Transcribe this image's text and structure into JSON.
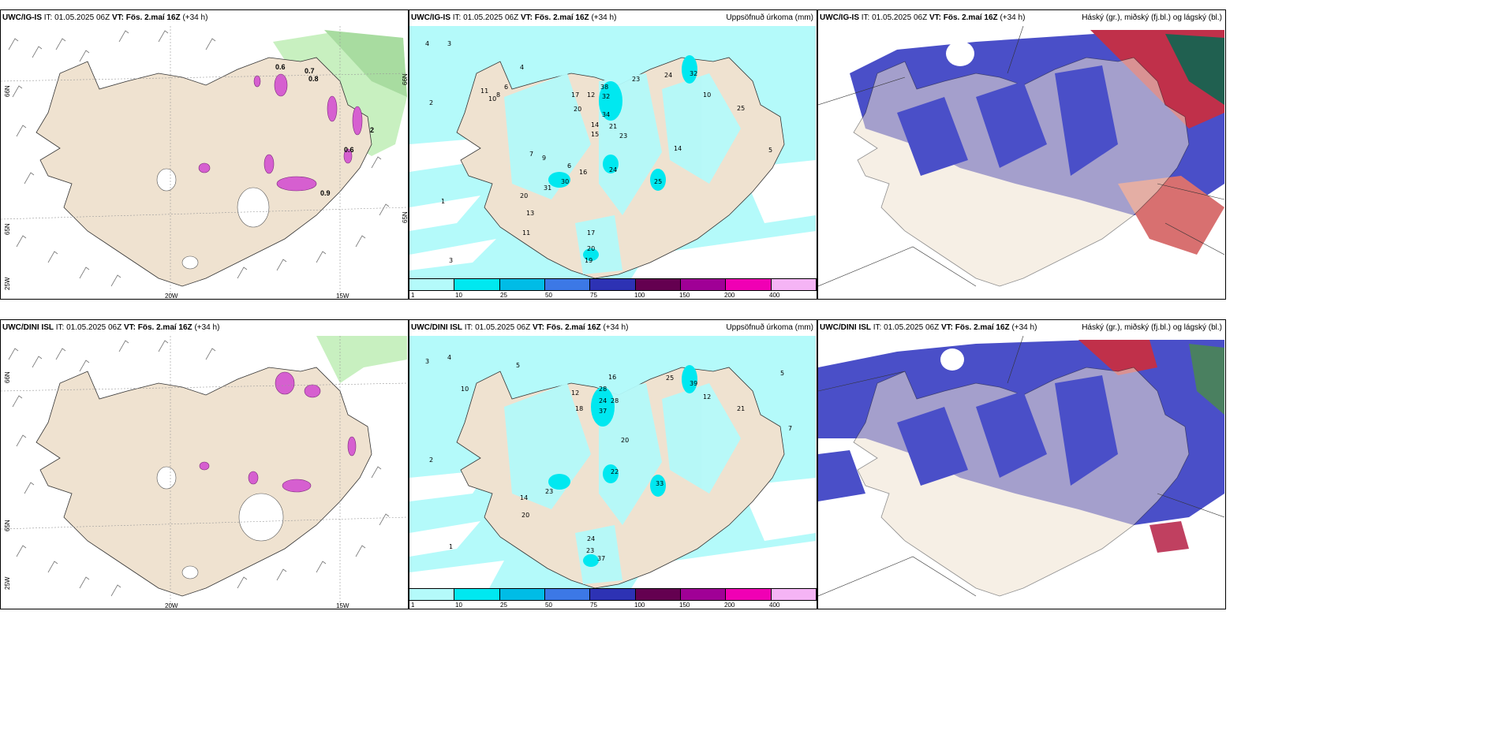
{
  "panels": {
    "p1": {
      "model": "UWC/IG-IS",
      "it_label": "IT:",
      "it": "01.05.2025 06Z",
      "vt_label": "VT:",
      "vt": "Fös. 2.maí 16Z",
      "lead": "(+34 h)",
      "right": ""
    },
    "p2": {
      "model": "UWC/IG-IS",
      "it_label": "IT:",
      "it": "01.05.2025 06Z",
      "vt_label": "VT:",
      "vt": "Fös. 2.maí 16Z",
      "lead": "(+34 h)",
      "right": "Uppsöfnuð úrkoma (mm)"
    },
    "p3": {
      "model": "UWC/IG-IS",
      "it_label": "IT:",
      "it": "01.05.2025 06Z",
      "vt_label": "VT:",
      "vt": "Fös. 2.maí 16Z",
      "lead": "(+34 h)",
      "right": "Háský (gr.), miðský (fj.bl.) og lágský (bl.)"
    },
    "p4": {
      "model": "UWC/DINI ISL",
      "it_label": "IT:",
      "it": "01.05.2025 06Z",
      "vt_label": "VT:",
      "vt": "Fös. 2.maí 16Z",
      "lead": "(+34 h)",
      "right": ""
    },
    "p5": {
      "model": "UWC/DINI ISL",
      "it_label": "IT:",
      "it": "01.05.2025 06Z",
      "vt_label": "VT:",
      "vt": "Fös. 2.maí 16Z",
      "lead": "(+34 h)",
      "right": "Uppsöfnuð úrkoma (mm)"
    },
    "p6": {
      "model": "UWC/DINI ISL",
      "it_label": "IT:",
      "it": "01.05.2025 06Z",
      "vt_label": "VT:",
      "vt": "Fös. 2.maí 16Z",
      "lead": "(+34 h)",
      "right": "Háský (gr.), miðský (fj.bl.) og lágský (bl.)"
    }
  },
  "axes": {
    "lat66": "66N",
    "lat65": "65N",
    "lon25": "25W",
    "lon20": "20W",
    "lon15": "15W"
  },
  "precip_scale": {
    "ticks": [
      "1",
      "10",
      "25",
      "50",
      "75",
      "100",
      "150",
      "200",
      "400"
    ],
    "colors": [
      "#b4fafa",
      "#00e8f0",
      "#00bce6",
      "#3c78e6",
      "#2d32b4",
      "#640050",
      "#a00096",
      "#f000b4",
      "#f5b4f5"
    ]
  },
  "precip_values_top": [
    "4",
    "3",
    "2",
    "4",
    "6",
    "8",
    "11",
    "10",
    "17",
    "38",
    "32",
    "34",
    "23",
    "24",
    "32",
    "10",
    "12",
    "20",
    "14",
    "15",
    "21",
    "23",
    "25",
    "7",
    "9",
    "6",
    "30",
    "31",
    "24",
    "16",
    "14",
    "25",
    "20",
    "13",
    "11",
    "17",
    "20",
    "19",
    "3",
    "1",
    "5"
  ],
  "precip_values_bottom": [
    "3",
    "4",
    "5",
    "10",
    "12",
    "18",
    "28",
    "24",
    "37",
    "28",
    "16",
    "20",
    "25",
    "39",
    "12",
    "21",
    "22",
    "33",
    "23",
    "14",
    "20",
    "24",
    "23",
    "37",
    "1",
    "2",
    "5",
    "7"
  ],
  "cloud_values_top": [
    "0.6",
    "0.7",
    "0.8",
    "0.9",
    "0.6",
    "2"
  ],
  "colors": {
    "land": "#efe2d0",
    "sea_precip": "#b4fafa",
    "cloud_high": "#4a4fc8",
    "pink": "#d65fd0"
  }
}
